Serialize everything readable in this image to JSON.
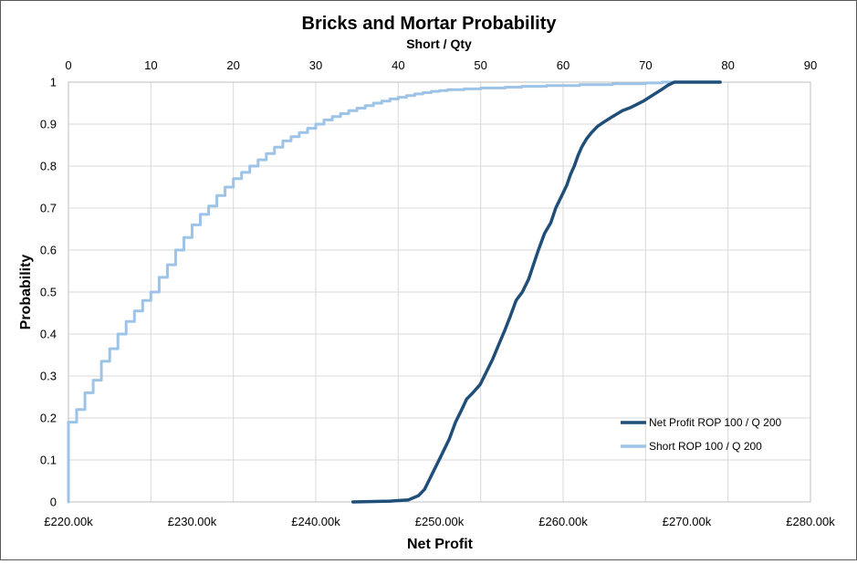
{
  "chart_data": {
    "type": "line",
    "title": "Bricks and Mortar Probability",
    "subtitle": "Short / Qty",
    "xlabel": "Net Profit",
    "ylabel": "Probability",
    "x_primary": {
      "range": [
        220,
        280
      ],
      "tick_values": [
        220,
        230,
        240,
        250,
        260,
        270,
        280
      ],
      "tick_labels": [
        "£220.00k",
        "£230.00k",
        "£240.00k",
        "£250.00k",
        "£260.00k",
        "£270.00k",
        "£280.00k"
      ]
    },
    "x_secondary": {
      "range": [
        0,
        90
      ],
      "tick_values": [
        0,
        10,
        20,
        30,
        40,
        50,
        60,
        70,
        80,
        90
      ],
      "tick_labels": [
        "0",
        "10",
        "20",
        "30",
        "40",
        "50",
        "60",
        "70",
        "80",
        "90"
      ]
    },
    "y": {
      "range": [
        0,
        1
      ],
      "tick_values": [
        0,
        0.1,
        0.2,
        0.3,
        0.4,
        0.5,
        0.6,
        0.7,
        0.8,
        0.9,
        1
      ],
      "tick_labels": [
        "0",
        "0.1",
        "0.2",
        "0.3",
        "0.4",
        "0.5",
        "0.6",
        "0.7",
        "0.8",
        "0.9",
        "1"
      ]
    },
    "grid": true,
    "legend_position": "bottom-right",
    "series": [
      {
        "name": "Net Profit ROP 100 / Q 200",
        "axis": "primary",
        "step": false,
        "color": "#1f4e79",
        "points": [
          [
            243,
            0
          ],
          [
            246,
            0.002
          ],
          [
            247.5,
            0.005
          ],
          [
            248.3,
            0.015
          ],
          [
            248.8,
            0.03
          ],
          [
            249.3,
            0.06
          ],
          [
            249.8,
            0.09
          ],
          [
            250.3,
            0.12
          ],
          [
            250.8,
            0.15
          ],
          [
            251.3,
            0.19
          ],
          [
            251.8,
            0.22
          ],
          [
            252.2,
            0.245
          ],
          [
            252.7,
            0.26
          ],
          [
            253.3,
            0.28
          ],
          [
            253.8,
            0.31
          ],
          [
            254.3,
            0.34
          ],
          [
            254.8,
            0.375
          ],
          [
            255.3,
            0.41
          ],
          [
            255.7,
            0.44
          ],
          [
            256.2,
            0.48
          ],
          [
            256.7,
            0.5
          ],
          [
            257.2,
            0.53
          ],
          [
            257.6,
            0.565
          ],
          [
            258.0,
            0.6
          ],
          [
            258.5,
            0.64
          ],
          [
            259.0,
            0.665
          ],
          [
            259.4,
            0.7
          ],
          [
            259.9,
            0.73
          ],
          [
            260.3,
            0.755
          ],
          [
            260.6,
            0.78
          ],
          [
            260.9,
            0.8
          ],
          [
            261.2,
            0.825
          ],
          [
            261.5,
            0.845
          ],
          [
            261.9,
            0.865
          ],
          [
            262.3,
            0.88
          ],
          [
            262.8,
            0.895
          ],
          [
            263.3,
            0.905
          ],
          [
            264.0,
            0.918
          ],
          [
            264.8,
            0.932
          ],
          [
            265.5,
            0.94
          ],
          [
            266.5,
            0.955
          ],
          [
            267.3,
            0.97
          ],
          [
            268.0,
            0.983
          ],
          [
            268.5,
            0.993
          ],
          [
            269.0,
            1
          ],
          [
            272.7,
            1
          ]
        ]
      },
      {
        "name": "Short ROP 100 / Q 200",
        "axis": "secondary",
        "step": true,
        "color": "#9dc3e6",
        "points": [
          [
            0,
            0
          ],
          [
            0,
            0.19
          ],
          [
            1,
            0.22
          ],
          [
            2,
            0.26
          ],
          [
            3,
            0.29
          ],
          [
            4,
            0.335
          ],
          [
            5,
            0.365
          ],
          [
            6,
            0.4
          ],
          [
            7,
            0.43
          ],
          [
            8,
            0.455
          ],
          [
            9,
            0.48
          ],
          [
            10,
            0.5
          ],
          [
            11,
            0.535
          ],
          [
            12,
            0.565
          ],
          [
            13,
            0.6
          ],
          [
            14,
            0.63
          ],
          [
            15,
            0.66
          ],
          [
            16,
            0.685
          ],
          [
            17,
            0.705
          ],
          [
            18,
            0.73
          ],
          [
            19,
            0.75
          ],
          [
            20,
            0.77
          ],
          [
            21,
            0.785
          ],
          [
            22,
            0.8
          ],
          [
            23,
            0.815
          ],
          [
            24,
            0.83
          ],
          [
            25,
            0.845
          ],
          [
            26,
            0.86
          ],
          [
            27,
            0.87
          ],
          [
            28,
            0.88
          ],
          [
            29,
            0.89
          ],
          [
            30,
            0.9
          ],
          [
            31,
            0.91
          ],
          [
            32,
            0.918
          ],
          [
            33,
            0.925
          ],
          [
            34,
            0.932
          ],
          [
            35,
            0.938
          ],
          [
            36,
            0.944
          ],
          [
            37,
            0.95
          ],
          [
            38,
            0.955
          ],
          [
            39,
            0.96
          ],
          [
            40,
            0.964
          ],
          [
            41,
            0.968
          ],
          [
            42,
            0.972
          ],
          [
            43,
            0.975
          ],
          [
            44,
            0.978
          ],
          [
            45,
            0.98
          ],
          [
            46,
            0.982
          ],
          [
            48,
            0.984
          ],
          [
            50,
            0.986
          ],
          [
            53,
            0.988
          ],
          [
            55,
            0.99
          ],
          [
            58,
            0.992
          ],
          [
            62,
            0.994
          ],
          [
            66,
            0.996
          ],
          [
            70,
            0.998
          ],
          [
            72,
            1
          ],
          [
            79,
            1
          ]
        ]
      }
    ]
  }
}
